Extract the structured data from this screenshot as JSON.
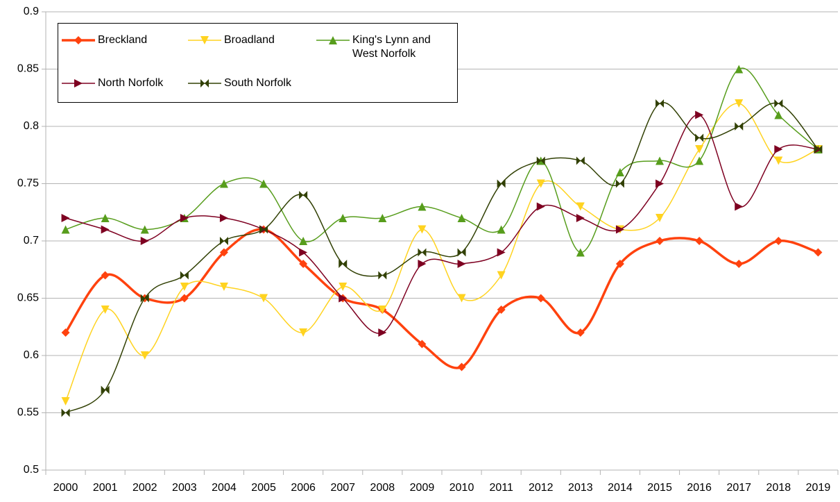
{
  "chart_data": {
    "type": "line",
    "categories": [
      "2000",
      "2001",
      "2002",
      "2003",
      "2004",
      "2005",
      "2006",
      "2007",
      "2008",
      "2009",
      "2010",
      "2011",
      "2012",
      "2013",
      "2014",
      "2015",
      "2016",
      "2017",
      "2018",
      "2019"
    ],
    "series": [
      {
        "name": "Breckland",
        "color": "#ff420e",
        "line_width": 3.5,
        "marker": "diamond",
        "values": [
          0.62,
          0.67,
          0.65,
          0.65,
          0.69,
          0.71,
          0.68,
          0.65,
          0.64,
          0.61,
          0.59,
          0.64,
          0.65,
          0.62,
          0.68,
          0.7,
          0.7,
          0.68,
          0.7,
          0.69
        ]
      },
      {
        "name": "Broadland",
        "color": "#ffd320",
        "line_width": 1.5,
        "marker": "triangle-down",
        "values": [
          0.56,
          0.64,
          0.6,
          0.66,
          0.66,
          0.65,
          0.62,
          0.66,
          0.64,
          0.71,
          0.65,
          0.67,
          0.75,
          0.73,
          0.71,
          0.72,
          0.78,
          0.82,
          0.77,
          0.78
        ]
      },
      {
        "name": "King's Lynn and West Norfolk",
        "color": "#579d1c",
        "line_width": 1.5,
        "marker": "triangle-up",
        "values": [
          0.71,
          0.72,
          0.71,
          0.72,
          0.75,
          0.75,
          0.7,
          0.72,
          0.72,
          0.73,
          0.72,
          0.71,
          0.77,
          0.69,
          0.76,
          0.77,
          0.77,
          0.85,
          0.81,
          0.78
        ]
      },
      {
        "name": "North Norfolk",
        "color": "#7e0021",
        "line_width": 1.5,
        "marker": "triangle-right",
        "values": [
          0.72,
          0.71,
          0.7,
          0.72,
          0.72,
          0.71,
          0.69,
          0.65,
          0.62,
          0.68,
          0.68,
          0.69,
          0.73,
          0.72,
          0.71,
          0.75,
          0.81,
          0.73,
          0.78,
          0.78
        ]
      },
      {
        "name": "South Norfolk",
        "color": "#314004",
        "line_width": 1.5,
        "marker": "bowtie",
        "values": [
          0.55,
          0.57,
          0.65,
          0.67,
          0.7,
          0.71,
          0.74,
          0.68,
          0.67,
          0.69,
          0.69,
          0.75,
          0.77,
          0.77,
          0.75,
          0.82,
          0.79,
          0.8,
          0.82,
          0.78
        ]
      }
    ],
    "ylim": [
      0.5,
      0.9
    ],
    "yticks": [
      0.5,
      0.55,
      0.6,
      0.65,
      0.7,
      0.75,
      0.8,
      0.85,
      0.9
    ],
    "grid": true,
    "smooth": true
  }
}
